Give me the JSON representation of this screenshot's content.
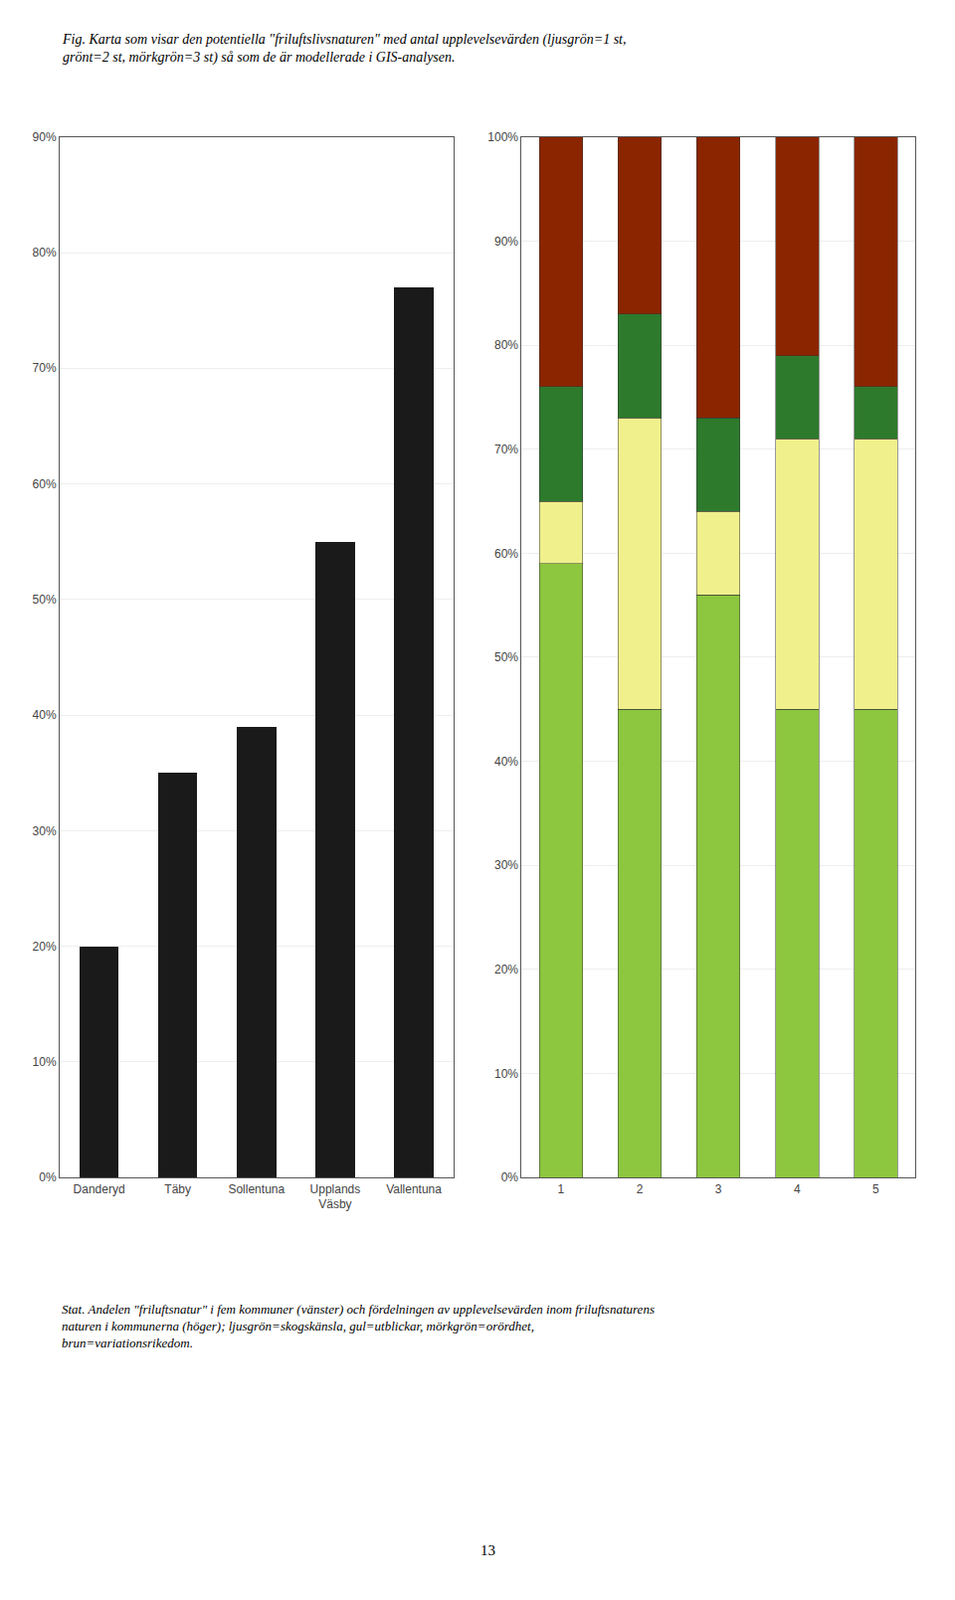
{
  "chart_data": [
    {
      "type": "bar",
      "categories": [
        "Danderyd",
        "Täby",
        "Sollentuna",
        "Upplands\nVäsby",
        "Vallentuna"
      ],
      "values": [
        0.2,
        0.35,
        0.39,
        0.55,
        0.77
      ],
      "color": "#1a1a1a",
      "ylim": [
        0,
        0.9
      ],
      "yticks": [
        {
          "value": 0,
          "label": "0%"
        },
        {
          "value": 0.1,
          "label": "10%"
        },
        {
          "value": 0.2,
          "label": "20%"
        },
        {
          "value": 0.3,
          "label": "30%"
        },
        {
          "value": 0.4,
          "label": "40%"
        },
        {
          "value": 0.5,
          "label": "50%"
        },
        {
          "value": 0.6,
          "label": "60%"
        },
        {
          "value": 0.7,
          "label": "70%"
        },
        {
          "value": 0.8,
          "label": "80%"
        },
        {
          "value": 0.9,
          "label": "90%"
        }
      ],
      "grid": true,
      "annotations": [
        "Fig. Karta som visar den potentiella \"friluftslivsnaturen\" med antal upplevelsevärden (ljusgrön=1 st,\ngrönt=2 st, mörkgrön=3 st) så som de är modellerade i GIS-analysen.",
        "Stat. Andelen \"friluftsnatur\" i fem kommuner (vänster) och fördelningen av upplevelsevärden inom friluftsnaturens\nnaturen i kommunerna (höger); ljusgrön=skogskänsla, gul=utblickar, mörkgrön=orördhet,\nbrun=variationsrikedom.",
        "13"
      ]
    },
    {
      "type": "bar",
      "stacked": true,
      "categories": [
        "1",
        "2",
        "3",
        "4",
        "5"
      ],
      "series": [
        {
          "color": "#8dc63f",
          "values": [
            0.59,
            0.45,
            0.56,
            0.45,
            0.45
          ]
        },
        {
          "color": "#f0f08c",
          "values": [
            0.06,
            0.28,
            0.08,
            0.26,
            0.26
          ]
        },
        {
          "color": "#2d7a2d",
          "values": [
            0.11,
            0.1,
            0.09,
            0.08,
            0.05
          ]
        },
        {
          "color": "#8b2500",
          "values": [
            0.24,
            0.17,
            0.27,
            0.21,
            0.24
          ]
        }
      ],
      "ylim": [
        0,
        1.0
      ],
      "yticks": [
        {
          "value": 0,
          "label": "0%"
        },
        {
          "value": 0.1,
          "label": "10%"
        },
        {
          "value": 0.2,
          "label": "20%"
        },
        {
          "value": 0.3,
          "label": "30%"
        },
        {
          "value": 0.4,
          "label": "40%"
        },
        {
          "value": 0.5,
          "label": "50%"
        },
        {
          "value": 0.6,
          "label": "60%"
        },
        {
          "value": 0.7,
          "label": "70%"
        },
        {
          "value": 0.8,
          "label": "80%"
        },
        {
          "value": 0.9,
          "label": "90%"
        },
        {
          "value": 1.0,
          "label": "100%"
        }
      ],
      "grid": true
    }
  ]
}
